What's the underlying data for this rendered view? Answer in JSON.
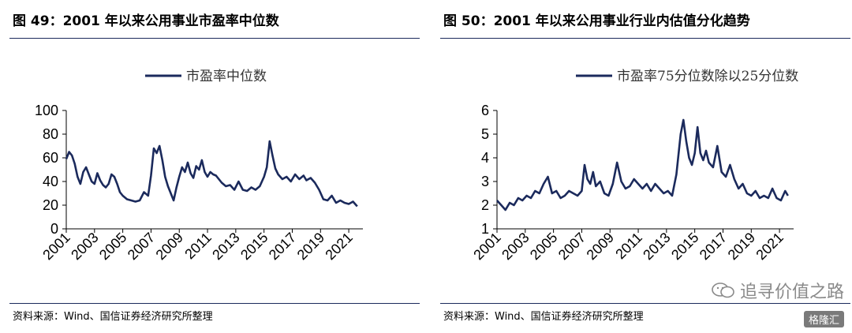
{
  "left": {
    "title": "图 49：2001 年以来公用事业市盈率中位数",
    "source": "资料来源：Wind、国信证券经济研究所整理",
    "chart_data": {
      "type": "line",
      "ylim": [
        0,
        100
      ],
      "yticks": [
        0,
        20,
        40,
        60,
        80,
        100
      ],
      "xlim": [
        2001,
        2022
      ],
      "xticks": [
        "2001",
        "2003",
        "2005",
        "2007",
        "2009",
        "2011",
        "2013",
        "2015",
        "2017",
        "2019",
        "2021"
      ],
      "legend": "top-center",
      "grid": false,
      "line_color": "#1b2a5c",
      "series": [
        {
          "name": "市盈率中位数",
          "x": [
            2001.0,
            2001.2,
            2001.4,
            2001.6,
            2001.8,
            2002.0,
            2002.2,
            2002.4,
            2002.6,
            2002.8,
            2003.0,
            2003.2,
            2003.4,
            2003.6,
            2003.8,
            2004.0,
            2004.2,
            2004.4,
            2004.6,
            2004.8,
            2005.0,
            2005.3,
            2005.6,
            2005.9,
            2006.2,
            2006.5,
            2006.8,
            2007.0,
            2007.2,
            2007.4,
            2007.6,
            2007.8,
            2008.0,
            2008.2,
            2008.4,
            2008.6,
            2008.8,
            2009.0,
            2009.2,
            2009.4,
            2009.6,
            2009.8,
            2010.0,
            2010.2,
            2010.4,
            2010.6,
            2010.8,
            2011.0,
            2011.2,
            2011.4,
            2011.6,
            2011.8,
            2012.0,
            2012.3,
            2012.6,
            2012.9,
            2013.2,
            2013.5,
            2013.8,
            2014.1,
            2014.4,
            2014.7,
            2015.0,
            2015.2,
            2015.4,
            2015.6,
            2015.8,
            2016.0,
            2016.3,
            2016.6,
            2016.9,
            2017.2,
            2017.5,
            2017.8,
            2018.0,
            2018.3,
            2018.6,
            2018.9,
            2019.2,
            2019.5,
            2019.8,
            2020.1,
            2020.4,
            2020.7,
            2021.0,
            2021.3,
            2021.6
          ],
          "y": [
            59,
            65,
            62,
            55,
            44,
            38,
            48,
            52,
            46,
            40,
            38,
            47,
            41,
            37,
            35,
            38,
            46,
            44,
            38,
            31,
            28,
            25,
            24,
            23,
            24,
            31,
            28,
            45,
            68,
            64,
            70,
            58,
            44,
            36,
            30,
            24,
            35,
            44,
            52,
            48,
            56,
            47,
            43,
            53,
            50,
            58,
            48,
            44,
            48,
            46,
            45,
            42,
            39,
            36,
            37,
            33,
            40,
            33,
            32,
            35,
            33,
            36,
            44,
            52,
            74,
            62,
            51,
            46,
            42,
            44,
            40,
            46,
            42,
            45,
            41,
            43,
            39,
            33,
            25,
            24,
            28,
            22,
            24,
            22,
            21,
            23,
            19
          ]
        }
      ]
    }
  },
  "right": {
    "title": "图 50：2001 年以来公用事业行业内估值分化趋势",
    "source": "资料来源：Wind、国信证券经济研究所整理",
    "chart_data": {
      "type": "line",
      "ylim": [
        1,
        6
      ],
      "yticks": [
        1,
        2,
        3,
        4,
        5,
        6
      ],
      "xlim": [
        2001,
        2022
      ],
      "xticks": [
        "2001",
        "2003",
        "2005",
        "2007",
        "2009",
        "2011",
        "2013",
        "2015",
        "2017",
        "2019",
        "2021"
      ],
      "legend": "top-center",
      "grid": false,
      "line_color": "#1b2a5c",
      "series": [
        {
          "name": "市盈率75分位数除以25分位数",
          "x": [
            2001.0,
            2001.3,
            2001.6,
            2001.9,
            2002.2,
            2002.5,
            2002.8,
            2003.1,
            2003.4,
            2003.7,
            2004.0,
            2004.3,
            2004.6,
            2004.9,
            2005.2,
            2005.5,
            2005.8,
            2006.1,
            2006.4,
            2006.7,
            2007.0,
            2007.2,
            2007.4,
            2007.6,
            2007.8,
            2008.0,
            2008.3,
            2008.6,
            2008.9,
            2009.2,
            2009.5,
            2009.8,
            2010.1,
            2010.4,
            2010.7,
            2011.0,
            2011.3,
            2011.6,
            2011.9,
            2012.2,
            2012.5,
            2012.8,
            2013.1,
            2013.4,
            2013.7,
            2014.0,
            2014.2,
            2014.4,
            2014.6,
            2014.8,
            2015.0,
            2015.2,
            2015.4,
            2015.6,
            2015.8,
            2016.0,
            2016.3,
            2016.6,
            2016.9,
            2017.2,
            2017.5,
            2017.8,
            2018.1,
            2018.4,
            2018.7,
            2019.0,
            2019.3,
            2019.6,
            2019.9,
            2020.2,
            2020.5,
            2020.8,
            2021.1,
            2021.4,
            2021.6
          ],
          "y": [
            2.2,
            2.0,
            1.8,
            2.1,
            2.0,
            2.3,
            2.2,
            2.4,
            2.3,
            2.6,
            2.5,
            2.9,
            3.2,
            2.5,
            2.6,
            2.3,
            2.4,
            2.6,
            2.5,
            2.4,
            2.6,
            3.7,
            3.1,
            2.9,
            3.4,
            2.8,
            3.0,
            2.5,
            2.4,
            2.9,
            3.8,
            3.0,
            2.7,
            2.8,
            3.1,
            2.9,
            2.7,
            2.9,
            2.6,
            2.9,
            2.7,
            2.5,
            2.6,
            2.4,
            3.3,
            5.0,
            5.6,
            4.7,
            4.0,
            3.7,
            4.2,
            5.3,
            4.2,
            3.9,
            4.3,
            3.8,
            3.6,
            4.5,
            3.4,
            3.2,
            3.7,
            3.1,
            2.7,
            2.9,
            2.5,
            2.4,
            2.6,
            2.3,
            2.4,
            2.3,
            2.7,
            2.3,
            2.2,
            2.6,
            2.4
          ]
        }
      ]
    }
  },
  "watermark": {
    "text": "追寻价值之路",
    "badge": "格隆汇"
  }
}
